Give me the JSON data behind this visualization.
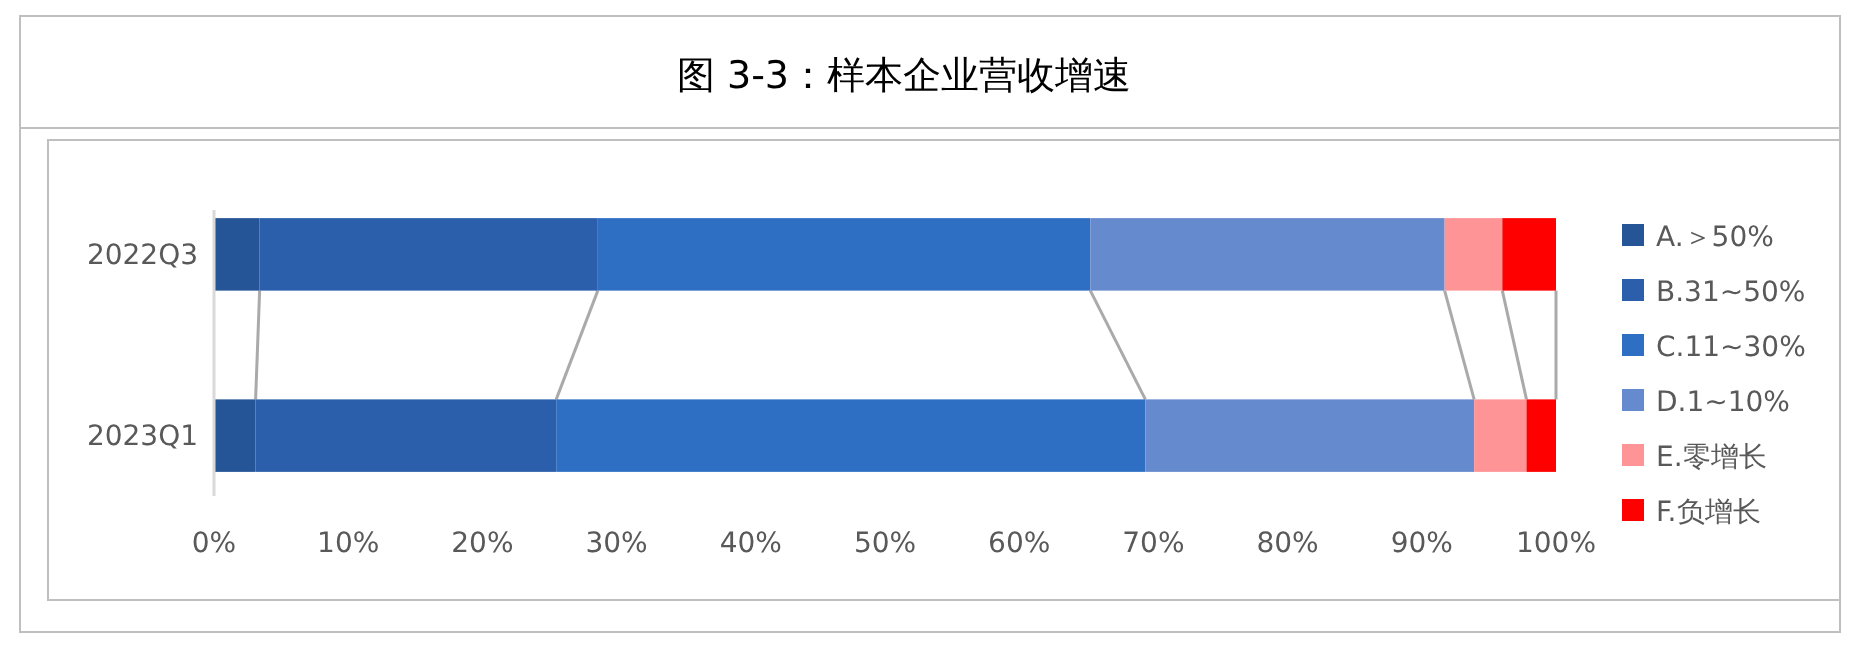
{
  "chart_data": {
    "type": "bar",
    "title": "图 3-3：样本企业营收增速",
    "orientation": "horizontal",
    "stacked": true,
    "categories": [
      "2022Q3",
      "2023Q1"
    ],
    "series": [
      {
        "name": "A.＞50%",
        "color": "#255497",
        "values": [
          3.4,
          3.1
        ]
      },
      {
        "name": "B.31~50%",
        "color": "#2b5fab",
        "values": [
          25.2,
          22.4
        ]
      },
      {
        "name": "C.11~30%",
        "color": "#2e6fc4",
        "values": [
          36.7,
          43.9
        ]
      },
      {
        "name": "D.1~10%",
        "color": "#668ace",
        "values": [
          26.4,
          24.5
        ]
      },
      {
        "name": "E.零增长",
        "color": "#ff9496",
        "values": [
          4.3,
          3.9
        ]
      },
      {
        "name": "F.负增长",
        "color": "#ff0000",
        "values": [
          4.0,
          2.2
        ]
      }
    ],
    "xlim": [
      0,
      100
    ],
    "xticks": [
      {
        "value": 0,
        "label": "0%"
      },
      {
        "value": 10,
        "label": "10%"
      },
      {
        "value": 20,
        "label": "20%"
      },
      {
        "value": 30,
        "label": "30%"
      },
      {
        "value": 40,
        "label": "40%"
      },
      {
        "value": 50,
        "label": "50%"
      },
      {
        "value": 60,
        "label": "60%"
      },
      {
        "value": 70,
        "label": "70%"
      },
      {
        "value": 80,
        "label": "80%"
      },
      {
        "value": 90,
        "label": "90%"
      },
      {
        "value": 100,
        "label": "100%"
      }
    ],
    "grid": false,
    "legend": "right"
  }
}
